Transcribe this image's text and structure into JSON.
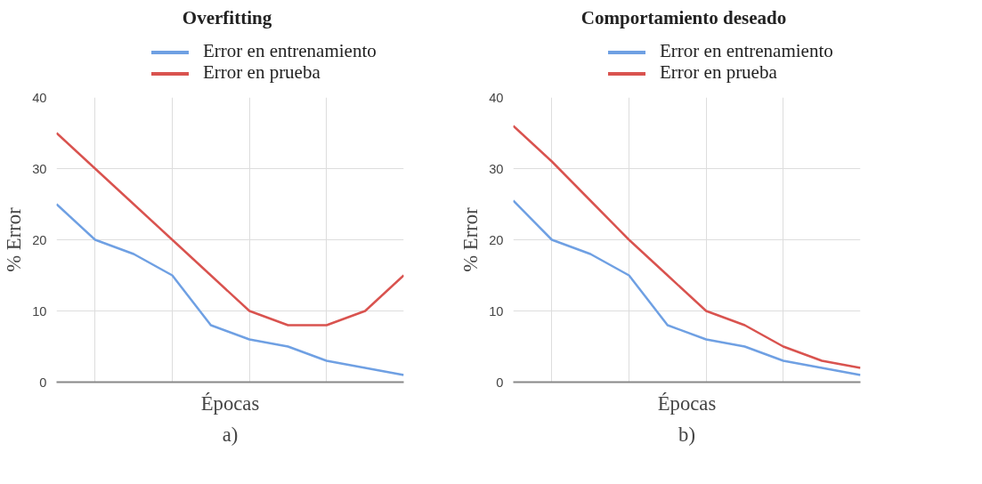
{
  "chart_data": [
    {
      "type": "line",
      "title": "Overfitting",
      "xlabel": "Épocas",
      "ylabel": "% Error",
      "annotations": [
        "a)"
      ],
      "categories": [
        null,
        null,
        null,
        null,
        null,
        null,
        null,
        null,
        null,
        null
      ],
      "ylim": [
        0,
        40
      ],
      "yticks": [
        0,
        10,
        20,
        30,
        40
      ],
      "tick_labels": "y",
      "grid": true,
      "legend": "top",
      "series": [
        {
          "name": "Error en entrenamiento",
          "color": "#6fa0e3",
          "values": [
            25,
            20,
            18,
            15,
            8,
            6,
            5,
            3,
            2,
            1
          ]
        },
        {
          "name": "Error en prueba",
          "color": "#d9534f",
          "values": [
            35,
            30,
            25,
            20,
            15,
            10,
            8,
            8,
            10,
            15
          ]
        }
      ]
    },
    {
      "type": "line",
      "title": "Comportamiento deseado",
      "xlabel": "Épocas",
      "ylabel": "% Error",
      "annotations": [
        "b)"
      ],
      "categories": [
        null,
        null,
        null,
        null,
        null,
        null,
        null,
        null,
        null,
        null
      ],
      "ylim": [
        0,
        40
      ],
      "yticks": [
        0,
        10,
        20,
        30,
        40
      ],
      "tick_labels": "y",
      "grid": true,
      "legend": "top",
      "series": [
        {
          "name": "Error en entrenamiento",
          "color": "#6fa0e3",
          "values": [
            25.5,
            20,
            18,
            15,
            8,
            6,
            5,
            3,
            2,
            1
          ]
        },
        {
          "name": "Error en prueba",
          "color": "#d9534f",
          "values": [
            36,
            31,
            25.5,
            20,
            15,
            10,
            8,
            5,
            3,
            2
          ]
        }
      ]
    }
  ]
}
